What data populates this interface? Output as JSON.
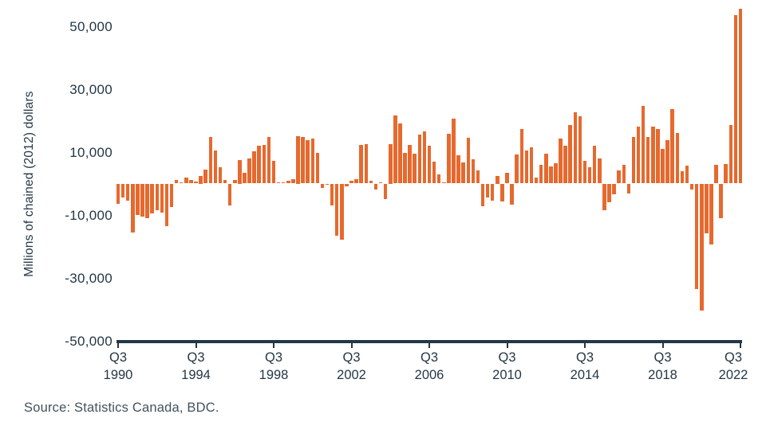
{
  "source": {
    "text": "Source: Statistics Canada, BDC."
  },
  "colors": {
    "bar": "#E6692E",
    "axis": "#243746",
    "text": "#243746",
    "muted_text": "#42525E"
  },
  "chart_data": {
    "type": "bar",
    "title": "",
    "xlabel": "",
    "ylabel": "Millions of chained (2012) dollars",
    "frequency": "quarterly",
    "start_period": "1990 Q3",
    "end_period": "2022 Q3",
    "ylim": [
      -50000,
      56000
    ],
    "grid": false,
    "legend": false,
    "bar_color": "#E6692E",
    "y_ticks": [
      {
        "value": 50000,
        "label": "50,000"
      },
      {
        "value": 30000,
        "label": "30,000"
      },
      {
        "value": 10000,
        "label": "10,000"
      },
      {
        "value": -10000,
        "label": "-10,000"
      },
      {
        "value": -30000,
        "label": "-30,000"
      },
      {
        "value": -50000,
        "label": "-50,000"
      }
    ],
    "x_ticks": [
      {
        "q": "Q3",
        "year": "1990"
      },
      {
        "q": "Q3",
        "year": "1994"
      },
      {
        "q": "Q3",
        "year": "1998"
      },
      {
        "q": "Q3",
        "year": "2002"
      },
      {
        "q": "Q3",
        "year": "2006"
      },
      {
        "q": "Q3",
        "year": "2010"
      },
      {
        "q": "Q3",
        "year": "2014"
      },
      {
        "q": "Q3",
        "year": "2018"
      },
      {
        "q": "Q3",
        "year": "2022"
      }
    ],
    "values": [
      -6500,
      -4500,
      -5500,
      -15500,
      -10000,
      -10500,
      -11000,
      -9400,
      -8500,
      -9200,
      -13600,
      -7500,
      1200,
      500,
      2000,
      1200,
      700,
      2500,
      4500,
      14700,
      10600,
      5200,
      1200,
      -6900,
      1200,
      7500,
      3500,
      8000,
      10200,
      11900,
      12400,
      14700,
      7100,
      500,
      500,
      1000,
      1500,
      15000,
      14800,
      13800,
      14300,
      9800,
      -1500,
      -500,
      -7000,
      -16500,
      -17800,
      -1000,
      1000,
      1500,
      12200,
      12600,
      1000,
      -2000,
      500,
      -5000,
      12500,
      21600,
      19200,
      9800,
      12400,
      9400,
      15600,
      16600,
      12000,
      7000,
      3000,
      500,
      15700,
      20600,
      9100,
      6600,
      14600,
      7600,
      4100,
      -7300,
      -4500,
      -5400,
      2500,
      -5600,
      3300,
      -6800,
      9200,
      17300,
      10500,
      11500,
      2000,
      6000,
      9500,
      5500,
      6500,
      14200,
      12000,
      18500,
      22600,
      21300,
      7300,
      5300,
      12100,
      8100,
      -8400,
      -6000,
      -3500,
      4100,
      5900,
      -3100,
      14900,
      18000,
      24600,
      14800,
      18200,
      17400,
      11100,
      13900,
      23600,
      16000,
      3900,
      5600,
      -2000,
      -33600,
      -40400,
      -15900,
      -19300,
      5900,
      -11100,
      6100,
      18600,
      53500,
      55600
    ]
  }
}
